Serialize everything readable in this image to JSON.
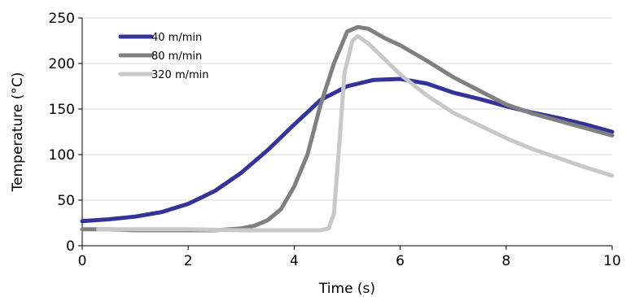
{
  "chart_data": {
    "type": "line",
    "title": "",
    "xlabel": "Time (s)",
    "ylabel": "Temperature (°C)",
    "xlim": [
      0,
      10
    ],
    "ylim": [
      0,
      250
    ],
    "xticks": [
      0,
      2,
      4,
      6,
      8,
      10
    ],
    "yticks": [
      0,
      50,
      100,
      150,
      200,
      250
    ],
    "grid": "horizontal",
    "legend": "top-left",
    "series": [
      {
        "name": "40 m/min",
        "color": "#333399",
        "points": [
          [
            0,
            27
          ],
          [
            0.5,
            29
          ],
          [
            1,
            32
          ],
          [
            1.5,
            37
          ],
          [
            2,
            46
          ],
          [
            2.5,
            60
          ],
          [
            3,
            80
          ],
          [
            3.5,
            105
          ],
          [
            4,
            133
          ],
          [
            4.5,
            160
          ],
          [
            5,
            175
          ],
          [
            5.5,
            182
          ],
          [
            6,
            183
          ],
          [
            6.5,
            178
          ],
          [
            7,
            168
          ],
          [
            7.5,
            161
          ],
          [
            8,
            153
          ],
          [
            8.5,
            146
          ],
          [
            9,
            140
          ],
          [
            9.5,
            133
          ],
          [
            10,
            125
          ]
        ]
      },
      {
        "name": "80 m/min",
        "color": "#808080",
        "points": [
          [
            0,
            18
          ],
          [
            0.5,
            18
          ],
          [
            1,
            17
          ],
          [
            1.5,
            17
          ],
          [
            2,
            17
          ],
          [
            2.5,
            17
          ],
          [
            3,
            19
          ],
          [
            3.25,
            22
          ],
          [
            3.5,
            28
          ],
          [
            3.75,
            40
          ],
          [
            4,
            65
          ],
          [
            4.25,
            100
          ],
          [
            4.5,
            155
          ],
          [
            4.75,
            200
          ],
          [
            5,
            235
          ],
          [
            5.2,
            240
          ],
          [
            5.4,
            238
          ],
          [
            5.7,
            228
          ],
          [
            6,
            220
          ],
          [
            6.5,
            203
          ],
          [
            7,
            185
          ],
          [
            7.5,
            170
          ],
          [
            8,
            155
          ],
          [
            8.5,
            145
          ],
          [
            9,
            137
          ],
          [
            9.5,
            129
          ],
          [
            10,
            121
          ]
        ]
      },
      {
        "name": "320 m/min",
        "color": "#c8c8c8",
        "points": [
          [
            0.3,
            18
          ],
          [
            1,
            18
          ],
          [
            2,
            18
          ],
          [
            3,
            17
          ],
          [
            4,
            17
          ],
          [
            4.5,
            17
          ],
          [
            4.65,
            19
          ],
          [
            4.75,
            35
          ],
          [
            4.85,
            110
          ],
          [
            4.95,
            190
          ],
          [
            5.1,
            225
          ],
          [
            5.2,
            230
          ],
          [
            5.4,
            222
          ],
          [
            5.7,
            205
          ],
          [
            6,
            188
          ],
          [
            6.5,
            165
          ],
          [
            7,
            146
          ],
          [
            7.5,
            132
          ],
          [
            8,
            118
          ],
          [
            8.5,
            106
          ],
          [
            9,
            96
          ],
          [
            9.5,
            86
          ],
          [
            10,
            77
          ]
        ]
      }
    ]
  }
}
